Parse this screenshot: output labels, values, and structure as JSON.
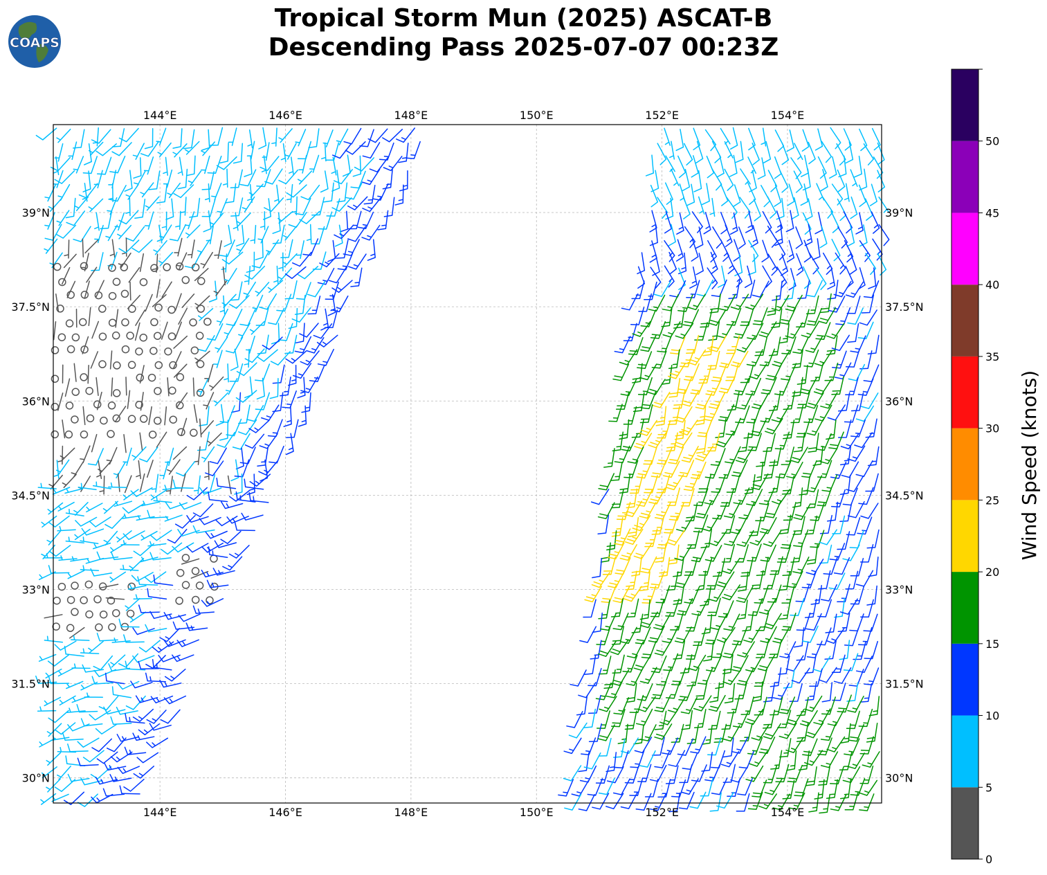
{
  "title": {
    "line1": "Tropical Storm Mun (2025) ASCAT-B",
    "line2": "Descending Pass 2025-07-07 00:23Z"
  },
  "logo": {
    "text": "COAPS",
    "ocean_color": "#1f5fa8",
    "land_color": "#4f7d3a"
  },
  "map": {
    "lon_ticks": [
      "144°E",
      "146°E",
      "148°E",
      "150°E",
      "152°E",
      "154°E"
    ],
    "lat_ticks": [
      "39°N",
      "37.5°N",
      "36°N",
      "34.5°N",
      "33°N",
      "31.5°N",
      "30°N"
    ],
    "lon_range": [
      142.3,
      155.5
    ],
    "lat_range": [
      29.6,
      40.4
    ],
    "grid": true,
    "swaths": [
      {
        "name": "west",
        "lat_range": [
          29.6,
          40.4
        ],
        "lon_west_edge_at_bottom": 142.3,
        "lon_east_edge_at_bottom": 143.7,
        "lon_east_edge_at_top": 148.3
      },
      {
        "name": "east",
        "lat_range": [
          29.6,
          40.4
        ],
        "lon_west_edge_at_bottom": 150.5,
        "lon_west_edge_at_top": 151.9,
        "lon_east_edge": 155.5
      }
    ]
  },
  "colorbar": {
    "label": "Wind Speed (knots)",
    "ticks": [
      "0",
      "5",
      "10",
      "15",
      "20",
      "25",
      "30",
      "35",
      "40",
      "45",
      "50"
    ],
    "bins": [
      {
        "min": 0,
        "max": 5,
        "color": "#555555"
      },
      {
        "min": 5,
        "max": 10,
        "color": "#00bfff"
      },
      {
        "min": 10,
        "max": 15,
        "color": "#0037ff"
      },
      {
        "min": 15,
        "max": 20,
        "color": "#009400"
      },
      {
        "min": 20,
        "max": 25,
        "color": "#ffd700"
      },
      {
        "min": 25,
        "max": 30,
        "color": "#ff8c00"
      },
      {
        "min": 30,
        "max": 35,
        "color": "#ff1010"
      },
      {
        "min": 35,
        "max": 40,
        "color": "#7f3b2a"
      },
      {
        "min": 40,
        "max": 45,
        "color": "#ff00ff"
      },
      {
        "min": 45,
        "max": 50,
        "color": "#8b00b8"
      },
      {
        "min": 50,
        "max": 55,
        "color": "#2a0060"
      }
    ]
  }
}
